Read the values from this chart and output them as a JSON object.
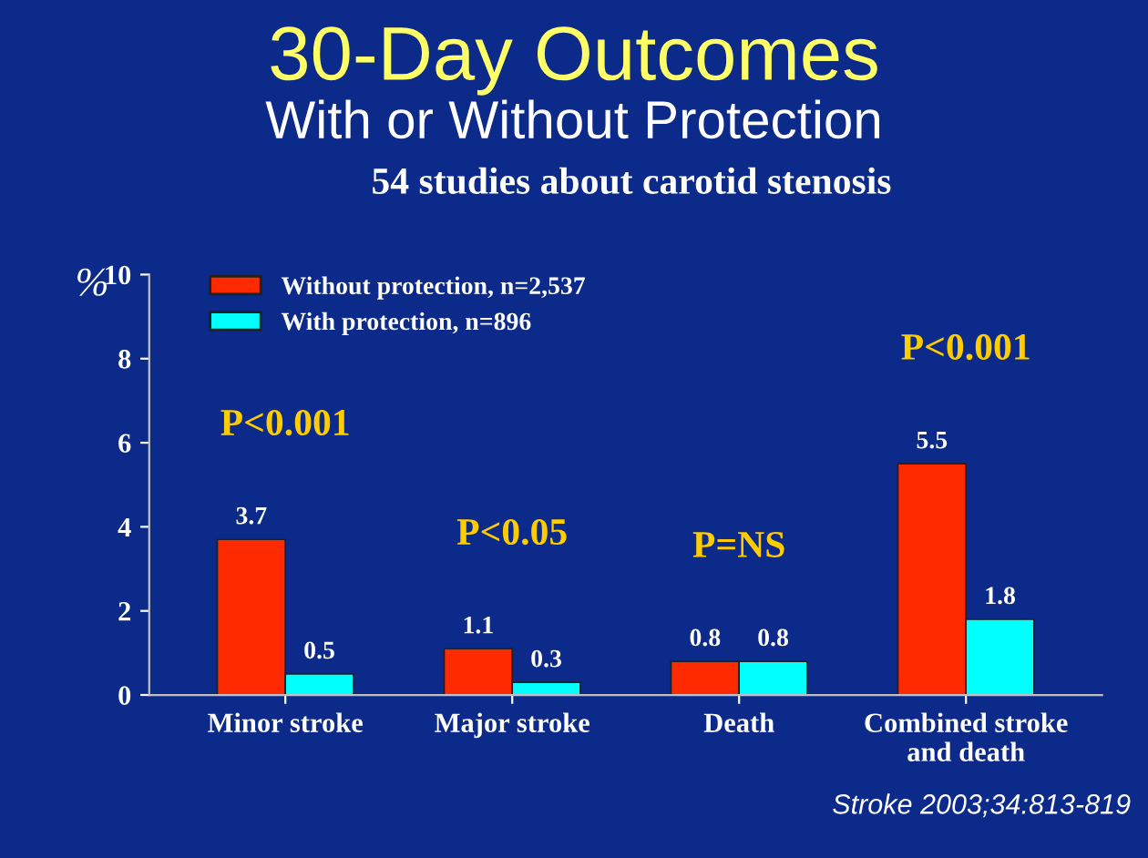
{
  "chart_data": {
    "type": "bar",
    "title": "30-Day Outcomes",
    "subtitle": "With or Without Protection",
    "ylabel": "%",
    "categories": [
      "Minor stroke",
      "Major stroke",
      "Death",
      "Combined stroke\nand death"
    ],
    "series": [
      {
        "name": "Without protection, n=2,537",
        "color": "#ff2a00",
        "values": [
          3.7,
          1.1,
          0.8,
          5.5
        ]
      },
      {
        "name": "With protection, n=896",
        "color": "#00ffff",
        "values": [
          0.5,
          0.3,
          0.8,
          1.8
        ]
      }
    ],
    "ylim": [
      0,
      10
    ],
    "yticks": [
      0,
      2,
      4,
      6,
      8,
      10
    ],
    "data_labels": true,
    "legend": "top left",
    "grid": false,
    "annotations": [
      "54 studies about carotid stenosis",
      "P<0.001",
      "P<0.05",
      "P=NS",
      "P<0.001",
      "Stroke 2003;34:813-819"
    ]
  }
}
